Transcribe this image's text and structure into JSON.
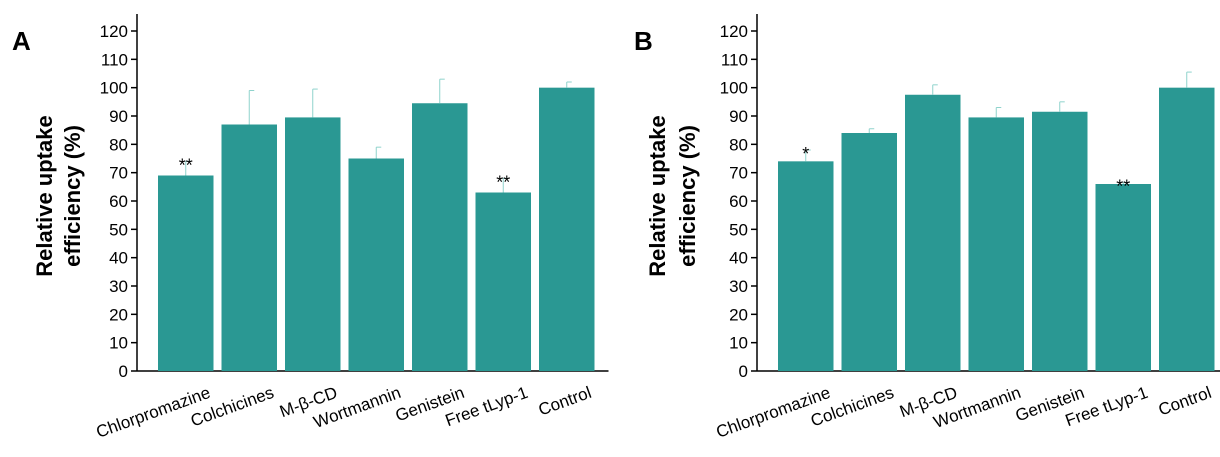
{
  "chart_data": [
    {
      "type": "bar",
      "panel": "A",
      "ylabel": [
        "Relative uptake",
        "efficiency (%)"
      ],
      "ylim": [
        0,
        120
      ],
      "yticks": [
        0,
        10,
        20,
        30,
        40,
        50,
        60,
        70,
        80,
        90,
        100,
        110,
        120
      ],
      "categories": [
        "Chlorpromazine",
        "Colchicines",
        "M-β-CD",
        "Wortmannin",
        "Genistein",
        "Free tLyp-1",
        "Control"
      ],
      "values": [
        69,
        87,
        89.5,
        75,
        94.5,
        63,
        100
      ],
      "errors": [
        5,
        12,
        10,
        4,
        8.5,
        5,
        2
      ],
      "significance": [
        "**",
        "",
        "",
        "",
        "",
        "**",
        ""
      ],
      "bar_color": "#2a9893",
      "error_color": "#8fd3cc"
    },
    {
      "type": "bar",
      "panel": "B",
      "ylabel": [
        "Relative uptake",
        "efficiency (%)"
      ],
      "ylim": [
        0,
        120
      ],
      "yticks": [
        0,
        10,
        20,
        30,
        40,
        50,
        60,
        70,
        80,
        90,
        100,
        110,
        120
      ],
      "categories": [
        "Chlorpromazine",
        "Colchicines",
        "M-β-CD",
        "Wortmannin",
        "Genistein",
        "Free tLyp-1",
        "Control"
      ],
      "values": [
        74,
        84,
        97.5,
        89.5,
        91.5,
        66,
        100
      ],
      "errors": [
        4,
        1.5,
        3.5,
        3.5,
        3.5,
        0.5,
        5.5
      ],
      "significance": [
        "*",
        "",
        "",
        "",
        "",
        "**",
        ""
      ],
      "bar_color": "#2a9893",
      "error_color": "#8fd3cc"
    }
  ]
}
